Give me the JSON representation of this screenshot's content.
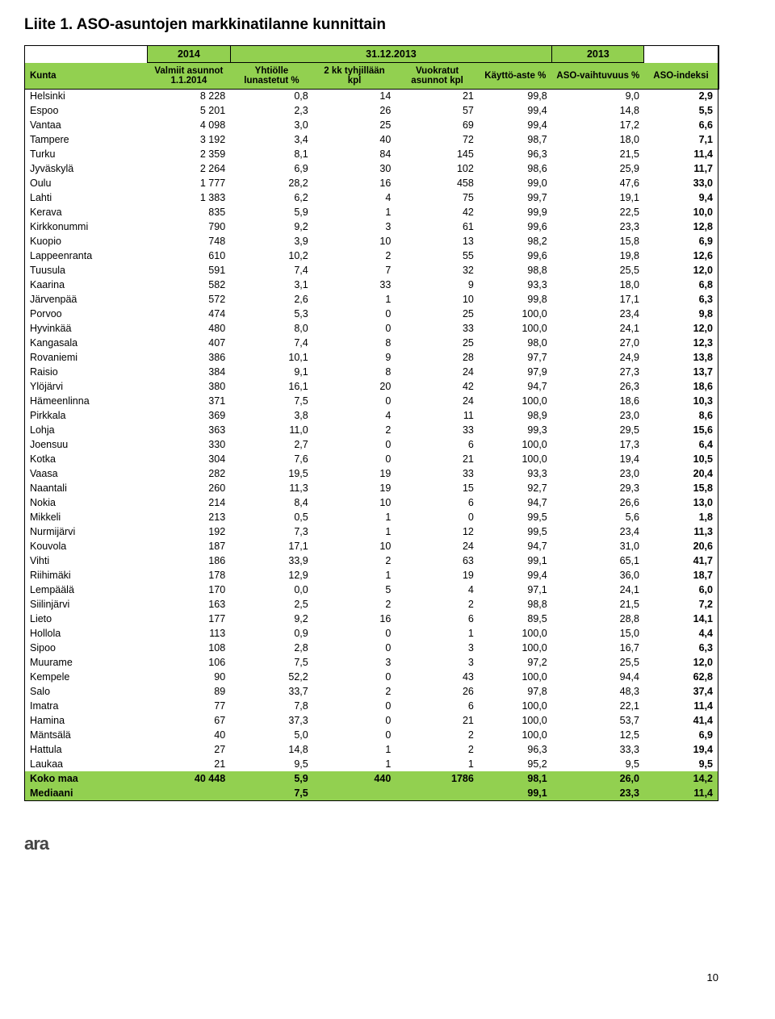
{
  "title": "Liite 1. ASO-asuntojen markkinatilanne kunnittain",
  "header": {
    "year_left": "2014",
    "year_mid": "31.12.2013",
    "year_right": "2013",
    "cols": [
      "Kunta",
      "Valmiit asunnot 1.1.2014",
      "Yhtiölle lunastetut %",
      "2 kk tyhjillään kpl",
      "Vuokratut asunnot kpl",
      "Käyttö-aste %",
      "ASO-vaihtuvuus %",
      "ASO-indeksi"
    ]
  },
  "rows": [
    {
      "k": "Helsinki",
      "c": [
        "8 228",
        "0,8",
        "14",
        "21",
        "99,8",
        "9,0",
        "2,9"
      ]
    },
    {
      "k": "Espoo",
      "c": [
        "5 201",
        "2,3",
        "26",
        "57",
        "99,4",
        "14,8",
        "5,5"
      ]
    },
    {
      "k": "Vantaa",
      "c": [
        "4 098",
        "3,0",
        "25",
        "69",
        "99,4",
        "17,2",
        "6,6"
      ]
    },
    {
      "k": "Tampere",
      "c": [
        "3 192",
        "3,4",
        "40",
        "72",
        "98,7",
        "18,0",
        "7,1"
      ]
    },
    {
      "k": "Turku",
      "c": [
        "2 359",
        "8,1",
        "84",
        "145",
        "96,3",
        "21,5",
        "11,4"
      ]
    },
    {
      "k": "Jyväskylä",
      "c": [
        "2 264",
        "6,9",
        "30",
        "102",
        "98,6",
        "25,9",
        "11,7"
      ]
    },
    {
      "k": "Oulu",
      "c": [
        "1 777",
        "28,2",
        "16",
        "458",
        "99,0",
        "47,6",
        "33,0"
      ]
    },
    {
      "k": "Lahti",
      "c": [
        "1 383",
        "6,2",
        "4",
        "75",
        "99,7",
        "19,1",
        "9,4"
      ]
    },
    {
      "k": "Kerava",
      "c": [
        "835",
        "5,9",
        "1",
        "42",
        "99,9",
        "22,5",
        "10,0"
      ]
    },
    {
      "k": "Kirkkonummi",
      "c": [
        "790",
        "9,2",
        "3",
        "61",
        "99,6",
        "23,3",
        "12,8"
      ]
    },
    {
      "k": "Kuopio",
      "c": [
        "748",
        "3,9",
        "10",
        "13",
        "98,2",
        "15,8",
        "6,9"
      ]
    },
    {
      "k": "Lappeenranta",
      "c": [
        "610",
        "10,2",
        "2",
        "55",
        "99,6",
        "19,8",
        "12,6"
      ]
    },
    {
      "k": "Tuusula",
      "c": [
        "591",
        "7,4",
        "7",
        "32",
        "98,8",
        "25,5",
        "12,0"
      ]
    },
    {
      "k": "Kaarina",
      "c": [
        "582",
        "3,1",
        "33",
        "9",
        "93,3",
        "18,0",
        "6,8"
      ]
    },
    {
      "k": "Järvenpää",
      "c": [
        "572",
        "2,6",
        "1",
        "10",
        "99,8",
        "17,1",
        "6,3"
      ]
    },
    {
      "k": "Porvoo",
      "c": [
        "474",
        "5,3",
        "0",
        "25",
        "100,0",
        "23,4",
        "9,8"
      ]
    },
    {
      "k": "Hyvinkää",
      "c": [
        "480",
        "8,0",
        "0",
        "33",
        "100,0",
        "24,1",
        "12,0"
      ]
    },
    {
      "k": "Kangasala",
      "c": [
        "407",
        "7,4",
        "8",
        "25",
        "98,0",
        "27,0",
        "12,3"
      ]
    },
    {
      "k": "Rovaniemi",
      "c": [
        "386",
        "10,1",
        "9",
        "28",
        "97,7",
        "24,9",
        "13,8"
      ]
    },
    {
      "k": "Raisio",
      "c": [
        "384",
        "9,1",
        "8",
        "24",
        "97,9",
        "27,3",
        "13,7"
      ]
    },
    {
      "k": "Ylöjärvi",
      "c": [
        "380",
        "16,1",
        "20",
        "42",
        "94,7",
        "26,3",
        "18,6"
      ]
    },
    {
      "k": "Hämeenlinna",
      "c": [
        "371",
        "7,5",
        "0",
        "24",
        "100,0",
        "18,6",
        "10,3"
      ]
    },
    {
      "k": "Pirkkala",
      "c": [
        "369",
        "3,8",
        "4",
        "11",
        "98,9",
        "23,0",
        "8,6"
      ]
    },
    {
      "k": "Lohja",
      "c": [
        "363",
        "11,0",
        "2",
        "33",
        "99,3",
        "29,5",
        "15,6"
      ]
    },
    {
      "k": "Joensuu",
      "c": [
        "330",
        "2,7",
        "0",
        "6",
        "100,0",
        "17,3",
        "6,4"
      ]
    },
    {
      "k": "Kotka",
      "c": [
        "304",
        "7,6",
        "0",
        "21",
        "100,0",
        "19,4",
        "10,5"
      ]
    },
    {
      "k": "Vaasa",
      "c": [
        "282",
        "19,5",
        "19",
        "33",
        "93,3",
        "23,0",
        "20,4"
      ]
    },
    {
      "k": "Naantali",
      "c": [
        "260",
        "11,3",
        "19",
        "15",
        "92,7",
        "29,3",
        "15,8"
      ]
    },
    {
      "k": "Nokia",
      "c": [
        "214",
        "8,4",
        "10",
        "6",
        "94,7",
        "26,6",
        "13,0"
      ]
    },
    {
      "k": "Mikkeli",
      "c": [
        "213",
        "0,5",
        "1",
        "0",
        "99,5",
        "5,6",
        "1,8"
      ]
    },
    {
      "k": "Nurmijärvi",
      "c": [
        "192",
        "7,3",
        "1",
        "12",
        "99,5",
        "23,4",
        "11,3"
      ]
    },
    {
      "k": "Kouvola",
      "c": [
        "187",
        "17,1",
        "10",
        "24",
        "94,7",
        "31,0",
        "20,6"
      ]
    },
    {
      "k": "Vihti",
      "c": [
        "186",
        "33,9",
        "2",
        "63",
        "99,1",
        "65,1",
        "41,7"
      ]
    },
    {
      "k": "Riihimäki",
      "c": [
        "178",
        "12,9",
        "1",
        "19",
        "99,4",
        "36,0",
        "18,7"
      ]
    },
    {
      "k": "Lempäälä",
      "c": [
        "170",
        "0,0",
        "5",
        "4",
        "97,1",
        "24,1",
        "6,0"
      ]
    },
    {
      "k": "Siilinjärvi",
      "c": [
        "163",
        "2,5",
        "2",
        "2",
        "98,8",
        "21,5",
        "7,2"
      ]
    },
    {
      "k": "Lieto",
      "c": [
        "177",
        "9,2",
        "16",
        "6",
        "89,5",
        "28,8",
        "14,1"
      ]
    },
    {
      "k": "Hollola",
      "c": [
        "113",
        "0,9",
        "0",
        "1",
        "100,0",
        "15,0",
        "4,4"
      ]
    },
    {
      "k": "Sipoo",
      "c": [
        "108",
        "2,8",
        "0",
        "3",
        "100,0",
        "16,7",
        "6,3"
      ]
    },
    {
      "k": "Muurame",
      "c": [
        "106",
        "7,5",
        "3",
        "3",
        "97,2",
        "25,5",
        "12,0"
      ]
    },
    {
      "k": "Kempele",
      "c": [
        "90",
        "52,2",
        "0",
        "43",
        "100,0",
        "94,4",
        "62,8"
      ]
    },
    {
      "k": "Salo",
      "c": [
        "89",
        "33,7",
        "2",
        "26",
        "97,8",
        "48,3",
        "37,4"
      ]
    },
    {
      "k": "Imatra",
      "c": [
        "77",
        "7,8",
        "0",
        "6",
        "100,0",
        "22,1",
        "11,4"
      ]
    },
    {
      "k": "Hamina",
      "c": [
        "67",
        "37,3",
        "0",
        "21",
        "100,0",
        "53,7",
        "41,4"
      ]
    },
    {
      "k": "Mäntsälä",
      "c": [
        "40",
        "5,0",
        "0",
        "2",
        "100,0",
        "12,5",
        "6,9"
      ]
    },
    {
      "k": "Hattula",
      "c": [
        "27",
        "14,8",
        "1",
        "2",
        "96,3",
        "33,3",
        "19,4"
      ]
    },
    {
      "k": "Laukaa",
      "c": [
        "21",
        "9,5",
        "1",
        "1",
        "95,2",
        "9,5",
        "9,5"
      ]
    }
  ],
  "summary": [
    {
      "k": "Koko maa",
      "c": [
        "40 448",
        "5,9",
        "440",
        "1786",
        "98,1",
        "26,0",
        "14,2"
      ]
    },
    {
      "k": "Mediaani",
      "c": [
        "",
        "7,5",
        "",
        "",
        "99,1",
        "23,3",
        "11,4"
      ]
    }
  ],
  "logo": "ara",
  "pagenum": "10"
}
